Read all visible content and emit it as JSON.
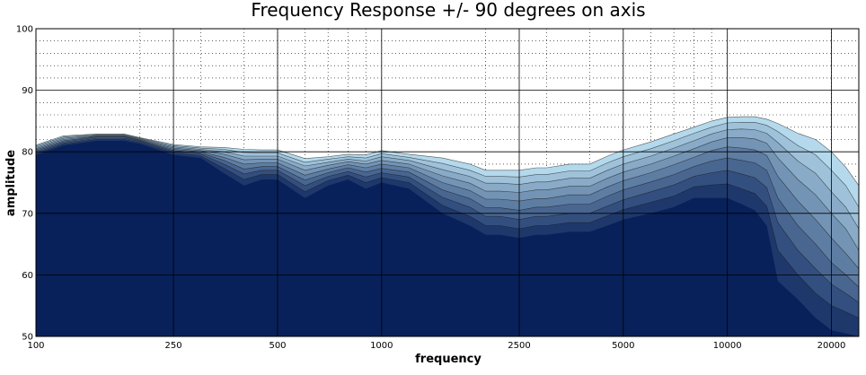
{
  "chart_data": {
    "type": "area",
    "title": "Frequency Response +/- 90 degrees on axis",
    "xlabel": "frequency",
    "ylabel": "amplitude",
    "xscale": "log",
    "xlim": [
      100,
      24000
    ],
    "ylim": [
      50,
      100
    ],
    "grid": true,
    "x_ticks": [
      100,
      250,
      500,
      1000,
      2500,
      5000,
      10000,
      20000
    ],
    "x_tick_labels": [
      "100",
      "250",
      "500",
      "1000",
      "2500",
      "5000",
      "10000",
      "20000"
    ],
    "y_ticks": [
      50,
      60,
      70,
      80,
      90,
      100
    ],
    "y_tick_labels": [
      "50",
      "60",
      "70",
      "80",
      "90",
      "100"
    ],
    "colors": {
      "front": "#08215a",
      "back": "#b4d9ec",
      "edge": "#1a1a1a",
      "grid_major": "#000000",
      "grid_minor": "#000000"
    },
    "x": [
      100,
      120,
      150,
      180,
      200,
      250,
      300,
      350,
      400,
      450,
      500,
      600,
      700,
      800,
      900,
      1000,
      1200,
      1500,
      1800,
      2000,
      2200,
      2500,
      2800,
      3000,
      3500,
      4000,
      4500,
      5000,
      6000,
      7000,
      8000,
      9000,
      10000,
      11000,
      12000,
      13000,
      14000,
      16000,
      18000,
      20000,
      22000,
      24000
    ],
    "series": [
      {
        "values": [
          79.5,
          81.0,
          81.8,
          81.8,
          81.3,
          79.5,
          79.0,
          76.5,
          74.5,
          75.5,
          75.5,
          72.5,
          74.5,
          75.5,
          74.0,
          75.0,
          74.0,
          70.0,
          68.0,
          66.5,
          66.5,
          66.0,
          66.5,
          66.5,
          67.0,
          67.0,
          68.0,
          69.0,
          70.0,
          71.0,
          72.5,
          72.5,
          72.5,
          71.5,
          70.5,
          68.0,
          59.0,
          56.0,
          53.0,
          51.0,
          50.5,
          50.0
        ]
      },
      {
        "values": [
          79.7,
          81.2,
          82.0,
          82.0,
          81.5,
          79.8,
          79.3,
          77.3,
          75.5,
          76.3,
          76.3,
          73.5,
          75.3,
          76.2,
          75.0,
          75.8,
          75.0,
          71.3,
          69.5,
          68.0,
          68.0,
          67.5,
          68.0,
          68.0,
          68.5,
          68.5,
          69.6,
          70.6,
          71.8,
          72.8,
          74.3,
          74.6,
          74.8,
          74.0,
          73.2,
          71.2,
          64.0,
          60.0,
          57.0,
          55.0,
          54.0,
          53.0
        ]
      },
      {
        "values": [
          79.9,
          81.4,
          82.2,
          82.2,
          81.7,
          80.0,
          79.6,
          78.0,
          76.4,
          77.0,
          77.0,
          74.5,
          76.0,
          76.8,
          75.9,
          76.6,
          75.9,
          72.6,
          71.0,
          69.5,
          69.5,
          69.0,
          69.5,
          69.5,
          70.0,
          70.0,
          71.2,
          72.2,
          73.5,
          74.6,
          76.0,
          76.6,
          77.0,
          76.4,
          75.8,
          74.2,
          68.5,
          64.0,
          61.0,
          58.5,
          57.0,
          55.5
        ]
      },
      {
        "values": [
          80.1,
          81.6,
          82.4,
          82.4,
          81.8,
          80.2,
          79.8,
          78.6,
          77.2,
          77.6,
          77.6,
          75.4,
          76.6,
          77.4,
          76.7,
          77.3,
          76.7,
          73.8,
          72.4,
          70.9,
          70.9,
          70.5,
          71.0,
          71.0,
          71.5,
          71.5,
          72.8,
          73.8,
          75.1,
          76.3,
          77.6,
          78.5,
          79.0,
          78.6,
          78.2,
          77.0,
          72.5,
          68.0,
          65.0,
          62.0,
          60.0,
          58.0
        ]
      },
      {
        "values": [
          80.3,
          81.8,
          82.5,
          82.5,
          81.9,
          80.4,
          80.0,
          79.1,
          78.0,
          78.2,
          78.2,
          76.2,
          77.2,
          77.9,
          77.4,
          78.0,
          77.4,
          75.0,
          73.7,
          72.3,
          72.3,
          72.0,
          72.4,
          72.4,
          73.0,
          73.0,
          74.3,
          75.3,
          76.6,
          77.9,
          79.1,
          80.2,
          80.8,
          80.6,
          80.3,
          79.4,
          76.0,
          72.0,
          69.0,
          66.0,
          63.5,
          61.0
        ]
      },
      {
        "values": [
          80.5,
          82.0,
          82.6,
          82.6,
          82.0,
          80.6,
          80.2,
          79.6,
          78.7,
          78.8,
          78.8,
          77.0,
          77.8,
          78.4,
          78.0,
          78.6,
          78.0,
          76.1,
          74.9,
          73.6,
          73.6,
          73.4,
          73.8,
          73.8,
          74.4,
          74.4,
          75.7,
          76.7,
          78.0,
          79.3,
          80.5,
          81.6,
          82.3,
          82.3,
          82.1,
          81.4,
          79.0,
          75.5,
          73.0,
          70.0,
          67.5,
          64.0
        ]
      },
      {
        "values": [
          80.7,
          82.2,
          82.7,
          82.7,
          82.1,
          80.8,
          80.4,
          80.0,
          79.3,
          79.3,
          79.3,
          77.7,
          78.3,
          78.8,
          78.5,
          79.2,
          78.6,
          77.1,
          76.0,
          74.9,
          74.9,
          74.7,
          75.1,
          75.1,
          75.7,
          75.7,
          77.0,
          78.0,
          79.3,
          80.6,
          81.8,
          82.9,
          83.6,
          83.7,
          83.6,
          83.0,
          81.5,
          78.5,
          76.5,
          73.5,
          71.0,
          67.5
        ]
      },
      {
        "values": [
          80.9,
          82.4,
          82.8,
          82.8,
          82.2,
          81.0,
          80.6,
          80.4,
          79.9,
          79.8,
          79.8,
          78.3,
          78.8,
          79.2,
          79.0,
          79.7,
          79.1,
          78.1,
          77.0,
          76.0,
          76.0,
          75.9,
          76.3,
          76.3,
          76.9,
          76.9,
          78.2,
          79.2,
          80.5,
          81.8,
          83.0,
          84.0,
          84.7,
          84.8,
          84.8,
          84.3,
          83.3,
          81.0,
          79.5,
          77.0,
          74.5,
          71.0
        ]
      },
      {
        "values": [
          81.1,
          82.6,
          82.9,
          82.9,
          82.3,
          81.2,
          80.8,
          80.7,
          80.4,
          80.3,
          80.3,
          78.9,
          79.2,
          79.6,
          79.5,
          80.2,
          79.6,
          79.0,
          78.0,
          77.0,
          77.0,
          77.0,
          77.4,
          77.4,
          78.0,
          78.0,
          79.3,
          80.3,
          81.6,
          82.9,
          84.0,
          85.0,
          85.6,
          85.7,
          85.7,
          85.3,
          84.6,
          83.0,
          82.0,
          80.0,
          77.5,
          74.5
        ]
      }
    ]
  }
}
